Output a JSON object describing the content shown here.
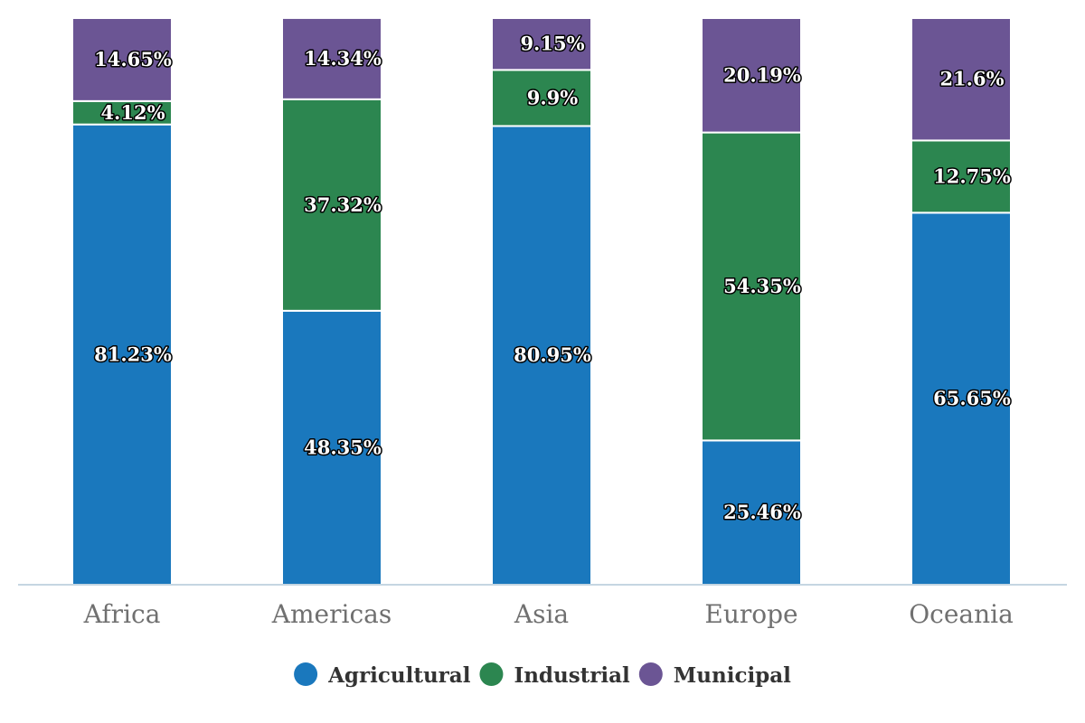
{
  "chart_data": {
    "type": "bar",
    "stacked": true,
    "percent": true,
    "categories": [
      "Africa",
      "Americas",
      "Asia",
      "Europe",
      "Oceania"
    ],
    "series": [
      {
        "name": "Agricultural",
        "color": "#1a78bd",
        "values": [
          81.23,
          48.35,
          80.95,
          25.46,
          65.65
        ],
        "labels": [
          "81.23%",
          "48.35%",
          "80.95%",
          "25.46%",
          "65.65%"
        ]
      },
      {
        "name": "Industrial",
        "color": "#2c8650",
        "values": [
          4.12,
          37.32,
          9.9,
          54.35,
          12.75
        ],
        "labels": [
          "4.12%",
          "37.32%",
          "9.9%",
          "54.35%",
          "12.75%"
        ]
      },
      {
        "name": "Municipal",
        "color": "#6b5594",
        "values": [
          14.65,
          14.34,
          9.15,
          20.19,
          21.6
        ],
        "labels": [
          "14.65%",
          "14.34%",
          "9.15%",
          "20.19%",
          "21.6%"
        ]
      }
    ],
    "ylim": [
      0,
      100
    ],
    "grid": false,
    "legend_position": "bottom",
    "axis_color": "#c5d6e2",
    "category_label_color": "#707070"
  }
}
